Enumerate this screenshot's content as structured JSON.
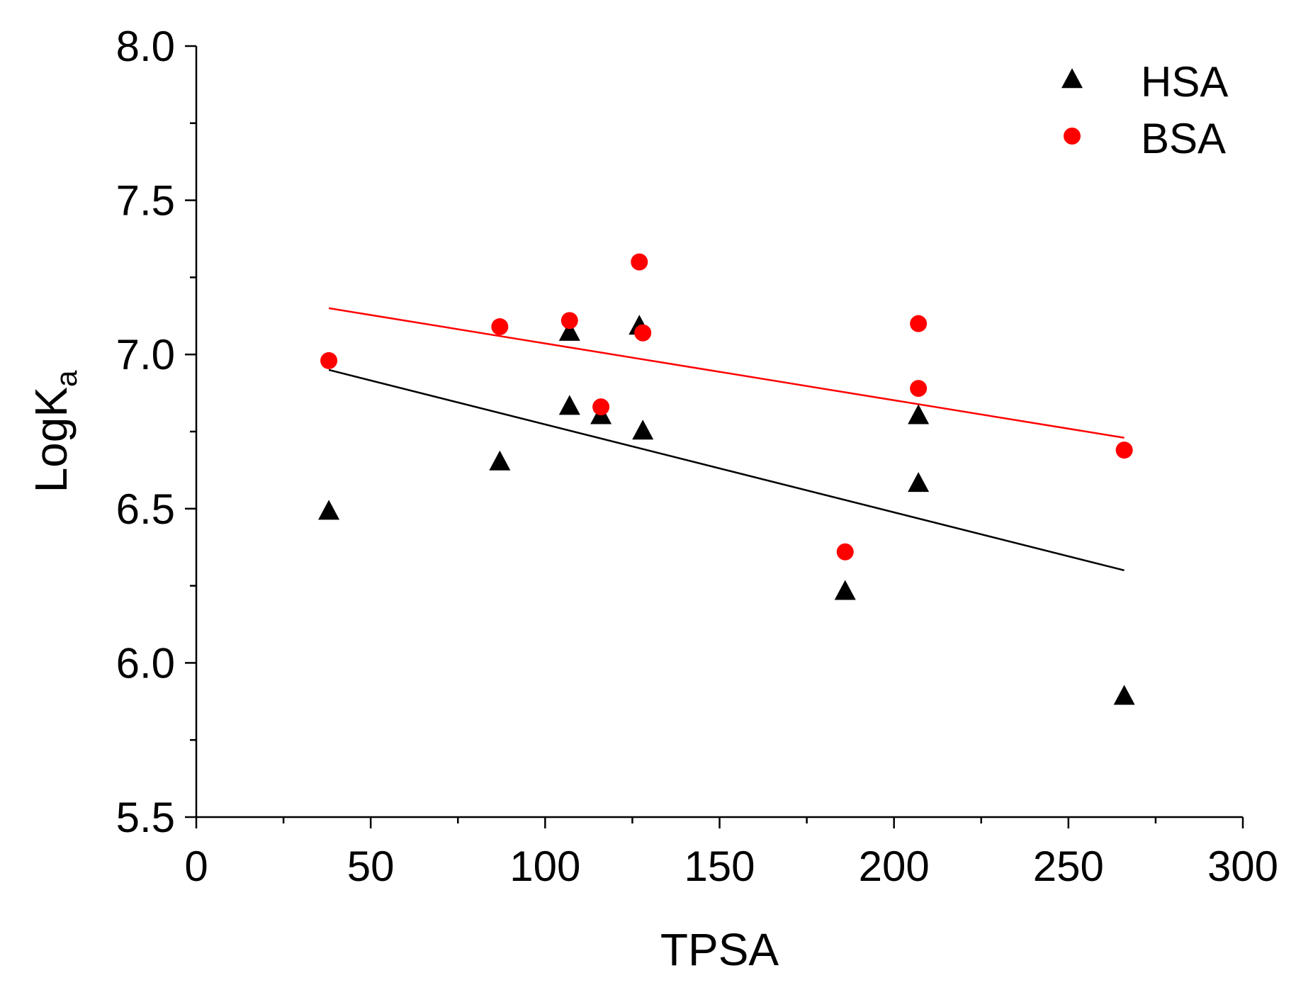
{
  "chart_data": {
    "type": "scatter",
    "title": "",
    "xlabel": "TPSA",
    "ylabel": "LogK",
    "ylabel_subscript": "a",
    "xlim": [
      0,
      300
    ],
    "ylim": [
      5.5,
      8.0
    ],
    "xticks": [
      0,
      50,
      100,
      150,
      200,
      250,
      300
    ],
    "xtick_labels": [
      "0",
      "50",
      "100",
      "150",
      "200",
      "250",
      "300"
    ],
    "yticks": [
      5.5,
      6.0,
      6.5,
      7.0,
      7.5,
      8.0
    ],
    "ytick_labels": [
      "5.5",
      "6.0",
      "6.5",
      "7.0",
      "7.5",
      "8.0"
    ],
    "x_minor_step": 25,
    "y_minor_step": 0.25,
    "grid": false,
    "legend_position": "top-right",
    "series": [
      {
        "name": "HSA",
        "marker": "triangle",
        "color": "#000000",
        "points": [
          {
            "x": 38,
            "y": 6.49
          },
          {
            "x": 87,
            "y": 6.65
          },
          {
            "x": 107,
            "y": 7.07
          },
          {
            "x": 107,
            "y": 6.83
          },
          {
            "x": 116,
            "y": 6.8
          },
          {
            "x": 127,
            "y": 7.09
          },
          {
            "x": 128,
            "y": 6.75
          },
          {
            "x": 186,
            "y": 6.23
          },
          {
            "x": 207,
            "y": 6.8
          },
          {
            "x": 207,
            "y": 6.58
          },
          {
            "x": 266,
            "y": 5.89
          }
        ],
        "fit_line": {
          "x": [
            38,
            266
          ],
          "y": [
            6.95,
            6.3
          ]
        }
      },
      {
        "name": "BSA",
        "marker": "circle",
        "color": "#ff0000",
        "points": [
          {
            "x": 38,
            "y": 6.98
          },
          {
            "x": 87,
            "y": 7.09
          },
          {
            "x": 107,
            "y": 7.11
          },
          {
            "x": 116,
            "y": 6.83
          },
          {
            "x": 127,
            "y": 7.3
          },
          {
            "x": 128,
            "y": 7.07
          },
          {
            "x": 186,
            "y": 6.36
          },
          {
            "x": 207,
            "y": 7.1
          },
          {
            "x": 207,
            "y": 6.89
          },
          {
            "x": 266,
            "y": 6.69
          }
        ],
        "fit_line": {
          "x": [
            38,
            266
          ],
          "y": [
            7.15,
            6.73
          ]
        }
      }
    ]
  }
}
